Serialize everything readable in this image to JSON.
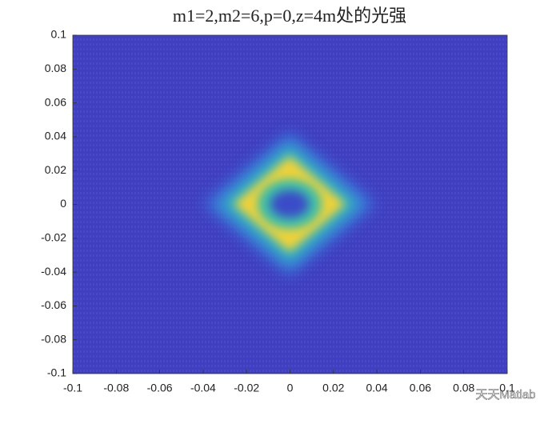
{
  "chart_data": {
    "type": "image",
    "title": "m1=2,m2=6,p=0,z=4m处的光强",
    "xlim": [
      -0.1,
      0.1
    ],
    "ylim": [
      -0.1,
      0.1
    ],
    "xticks": [
      -0.1,
      -0.08,
      -0.06,
      -0.04,
      -0.02,
      0,
      0.02,
      0.04,
      0.06,
      0.08,
      0.1
    ],
    "yticks": [
      -0.1,
      -0.08,
      -0.06,
      -0.04,
      -0.02,
      0,
      0.02,
      0.04,
      0.06,
      0.08,
      0.1
    ]
  },
  "watermark": "天天Matlab"
}
